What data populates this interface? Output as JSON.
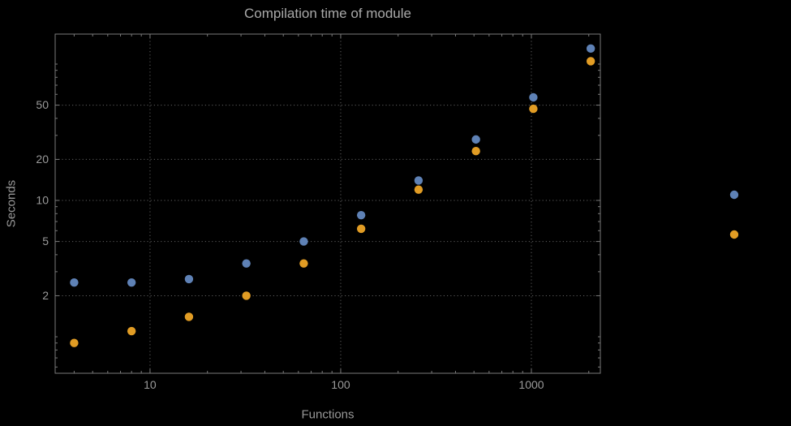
{
  "chart_data": {
    "type": "scatter",
    "title": "Compilation time of module",
    "xlabel": "Functions",
    "ylabel": "Seconds",
    "x_scale": "log",
    "y_scale": "log",
    "x_range": [
      3.18,
      2300
    ],
    "y_range": [
      0.54,
      166
    ],
    "x_ticks": [
      10,
      100,
      1000
    ],
    "y_ticks": [
      2,
      5,
      10,
      20,
      50
    ],
    "grid": true,
    "grid_color": "#5f5f5f",
    "frame_color": "#7a7a7a",
    "tick_label_color": "#9a9a9a",
    "point_radius": 5.2,
    "series": [
      {
        "name": "blue-series",
        "color": "#5e81b5",
        "points": [
          [
            4,
            2.5
          ],
          [
            8,
            2.5
          ],
          [
            16,
            2.65
          ],
          [
            32,
            3.45
          ],
          [
            64,
            5.0
          ],
          [
            128,
            7.8
          ],
          [
            256,
            14
          ],
          [
            512,
            28
          ],
          [
            1024,
            57
          ],
          [
            2048,
            130
          ]
        ]
      },
      {
        "name": "orange-series",
        "color": "#e19c24",
        "points": [
          [
            4,
            0.9
          ],
          [
            8,
            1.1
          ],
          [
            16,
            1.4
          ],
          [
            32,
            2.0
          ],
          [
            64,
            3.45
          ],
          [
            128,
            6.2
          ],
          [
            256,
            12
          ],
          [
            512,
            23
          ],
          [
            1024,
            47
          ],
          [
            2048,
            105
          ]
        ]
      }
    ],
    "legend_markers": [
      {
        "name": "blue-series-marker",
        "color": "#5e81b5"
      },
      {
        "name": "orange-series-marker",
        "color": "#e19c24"
      }
    ]
  }
}
